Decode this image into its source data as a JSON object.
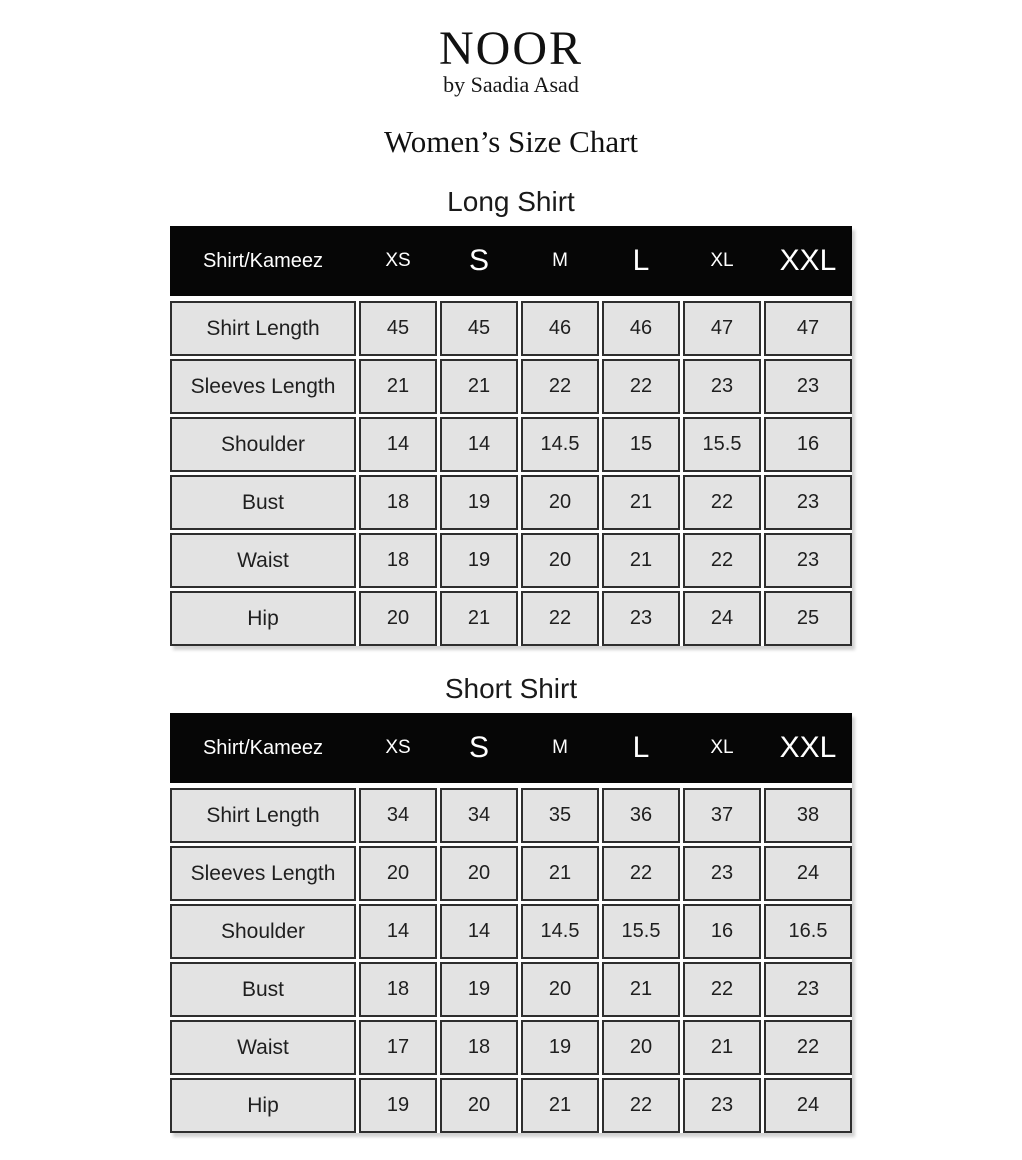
{
  "brand": {
    "name": "NOOR",
    "tagline": "by Saadia Asad"
  },
  "page_title": "Women’s Size Chart",
  "sizes_header_label": "Shirt/Kameez",
  "sizes": [
    "XS",
    "S",
    "M",
    "L",
    "XL",
    "XXL"
  ],
  "tables": [
    {
      "title": "Long Shirt",
      "rows": [
        {
          "label": "Shirt Length",
          "values": [
            "45",
            "45",
            "46",
            "46",
            "47",
            "47"
          ]
        },
        {
          "label": "Sleeves Length",
          "values": [
            "21",
            "21",
            "22",
            "22",
            "23",
            "23"
          ]
        },
        {
          "label": "Shoulder",
          "values": [
            "14",
            "14",
            "14.5",
            "15",
            "15.5",
            "16"
          ]
        },
        {
          "label": "Bust",
          "values": [
            "18",
            "19",
            "20",
            "21",
            "22",
            "23"
          ]
        },
        {
          "label": "Waist",
          "values": [
            "18",
            "19",
            "20",
            "21",
            "22",
            "23"
          ]
        },
        {
          "label": "Hip",
          "values": [
            "20",
            "21",
            "22",
            "23",
            "24",
            "25"
          ]
        }
      ]
    },
    {
      "title": "Short Shirt",
      "rows": [
        {
          "label": "Shirt Length",
          "values": [
            "34",
            "34",
            "35",
            "36",
            "37",
            "38"
          ]
        },
        {
          "label": "Sleeves Length",
          "values": [
            "20",
            "20",
            "21",
            "22",
            "23",
            "24"
          ]
        },
        {
          "label": "Shoulder",
          "values": [
            "14",
            "14",
            "14.5",
            "15.5",
            "16",
            "16.5"
          ]
        },
        {
          "label": "Bust",
          "values": [
            "18",
            "19",
            "20",
            "21",
            "22",
            "23"
          ]
        },
        {
          "label": "Waist",
          "values": [
            "17",
            "18",
            "19",
            "20",
            "21",
            "22"
          ]
        },
        {
          "label": "Hip",
          "values": [
            "19",
            "20",
            "21",
            "22",
            "23",
            "24"
          ]
        }
      ]
    }
  ],
  "colors": {
    "header_bg": "#060606",
    "header_text": "#ffffff",
    "cell_bg": "#e3e3e3",
    "cell_border": "#2e2e2e",
    "page_bg": "#ffffff"
  },
  "chart_data": [
    {
      "type": "table",
      "title": "Long Shirt",
      "columns": [
        "Shirt/Kameez",
        "XS",
        "S",
        "M",
        "L",
        "XL",
        "XXL"
      ],
      "rows": [
        [
          "Shirt Length",
          45,
          45,
          46,
          46,
          47,
          47
        ],
        [
          "Sleeves Length",
          21,
          21,
          22,
          22,
          23,
          23
        ],
        [
          "Shoulder",
          14,
          14,
          14.5,
          15,
          15.5,
          16
        ],
        [
          "Bust",
          18,
          19,
          20,
          21,
          22,
          23
        ],
        [
          "Waist",
          18,
          19,
          20,
          21,
          22,
          23
        ],
        [
          "Hip",
          20,
          21,
          22,
          23,
          24,
          25
        ]
      ]
    },
    {
      "type": "table",
      "title": "Short Shirt",
      "columns": [
        "Shirt/Kameez",
        "XS",
        "S",
        "M",
        "L",
        "XL",
        "XXL"
      ],
      "rows": [
        [
          "Shirt Length",
          34,
          34,
          35,
          36,
          37,
          38
        ],
        [
          "Sleeves Length",
          20,
          20,
          21,
          22,
          23,
          24
        ],
        [
          "Shoulder",
          14,
          14,
          14.5,
          15.5,
          16,
          16.5
        ],
        [
          "Bust",
          18,
          19,
          20,
          21,
          22,
          23
        ],
        [
          "Waist",
          17,
          18,
          19,
          20,
          21,
          22
        ],
        [
          "Hip",
          19,
          20,
          21,
          22,
          23,
          24
        ]
      ]
    }
  ]
}
